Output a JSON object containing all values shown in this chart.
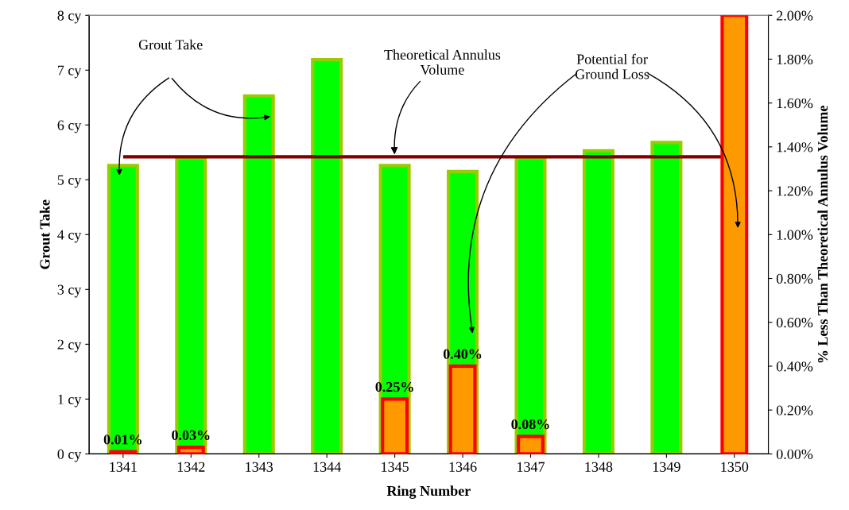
{
  "chart_data": {
    "type": "bar",
    "xlabel": "Ring Number",
    "ylabel": "Grout Take",
    "y2label": "% Less Than Theoretical Annulus Volume",
    "categories": [
      "1341",
      "1342",
      "1343",
      "1344",
      "1345",
      "1346",
      "1347",
      "1348",
      "1349",
      "1350"
    ],
    "series": [
      {
        "color": "#00ff00",
        "values": [
          5.26,
          5.4,
          6.53,
          7.19,
          5.26,
          5.15,
          5.4,
          5.53,
          5.68,
          null
        ]
      },
      {
        "axis": "y2",
        "color": "#ff9900",
        "values": [
          0.01,
          0.03,
          null,
          null,
          0.25,
          0.4,
          0.08,
          null,
          null,
          2.0
        ],
        "value_labels": [
          "0.01%",
          "0.03%",
          null,
          null,
          "0.25%",
          "0.40%",
          "0.08%",
          null,
          null,
          null
        ]
      }
    ],
    "ylim": [
      0,
      8
    ],
    "yticks": [
      {
        "value": 0,
        "label": "0 cy"
      },
      {
        "value": 1,
        "label": "1 cy"
      },
      {
        "value": 2,
        "label": "2 cy"
      },
      {
        "value": 3,
        "label": "3 cy"
      },
      {
        "value": 4,
        "label": "4 cy"
      },
      {
        "value": 5,
        "label": "5 cy"
      },
      {
        "value": 6,
        "label": "6 cy"
      },
      {
        "value": 7,
        "label": "7 cy"
      },
      {
        "value": 8,
        "label": "8 cy"
      }
    ],
    "y2lim": [
      0,
      2.0
    ],
    "y2ticks": [
      {
        "value": 0,
        "label": "0.00%"
      },
      {
        "value": 0.2,
        "label": "0.20%"
      },
      {
        "value": 0.4,
        "label": "0.40%"
      },
      {
        "value": 0.6,
        "label": "0.60%"
      },
      {
        "value": 0.8,
        "label": "0.80%"
      },
      {
        "value": 1.0,
        "label": "1.00%"
      },
      {
        "value": 1.2,
        "label": "1.20%"
      },
      {
        "value": 1.4,
        "label": "1.40%"
      },
      {
        "value": 1.6,
        "label": "1.60%"
      },
      {
        "value": 1.8,
        "label": "1.80%"
      },
      {
        "value": 2.0,
        "label": "2.00%"
      }
    ],
    "ref_lines": [
      {
        "axis": "y",
        "value": 5.42,
        "color": "#800000"
      }
    ],
    "annotations": [
      "Grout Take",
      {
        "text": "Theoretical Annulus\nVolume",
        "x": "1345",
        "y": 5.42
      },
      "Potential for\nGround Loss"
    ],
    "grid": false
  }
}
